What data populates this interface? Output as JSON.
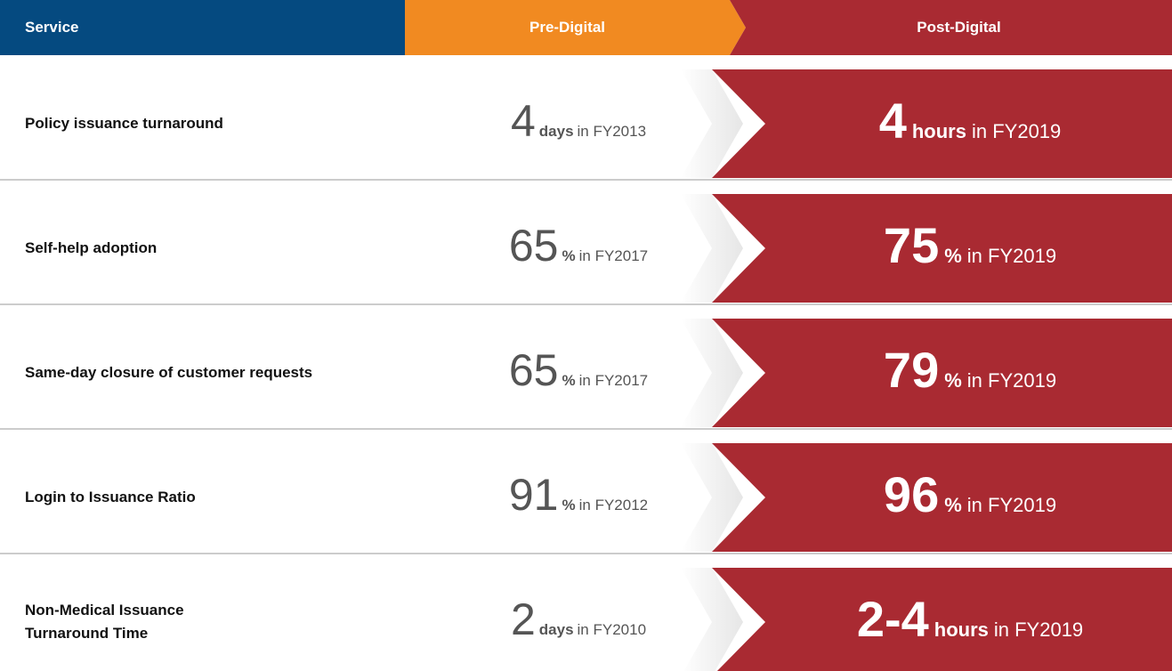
{
  "header": {
    "service": "Service",
    "pre": "Pre-Digital",
    "post": "Post-Digital"
  },
  "rows": [
    {
      "service": "Policy issuance turnaround",
      "pre": {
        "number": "4",
        "unit": "days",
        "period": "in FY2013"
      },
      "post": {
        "number": "4",
        "unit": "hours",
        "period": "in FY2019"
      }
    },
    {
      "service": "Self-help adoption",
      "pre": {
        "number": "65",
        "unit": "%",
        "period": "in FY2017"
      },
      "post": {
        "number": "75",
        "unit": "%",
        "period": "in FY2019"
      }
    },
    {
      "service": "Same-day closure of customer requests",
      "pre": {
        "number": "65",
        "unit": "%",
        "period": "in FY2017"
      },
      "post": {
        "number": "79",
        "unit": "%",
        "period": "in FY2019"
      }
    },
    {
      "service": "Login to Issuance Ratio",
      "pre": {
        "number": "91",
        "unit": "%",
        "period": "in FY2012"
      },
      "post": {
        "number": "96",
        "unit": "%",
        "period": "in FY2019"
      }
    },
    {
      "service": "Non-Medical Issuance Turnaround Time",
      "pre": {
        "number": "2",
        "unit": "days",
        "period": "in FY2010"
      },
      "post": {
        "number": "2-4",
        "unit": "hours",
        "period": "in FY2019"
      }
    }
  ]
}
